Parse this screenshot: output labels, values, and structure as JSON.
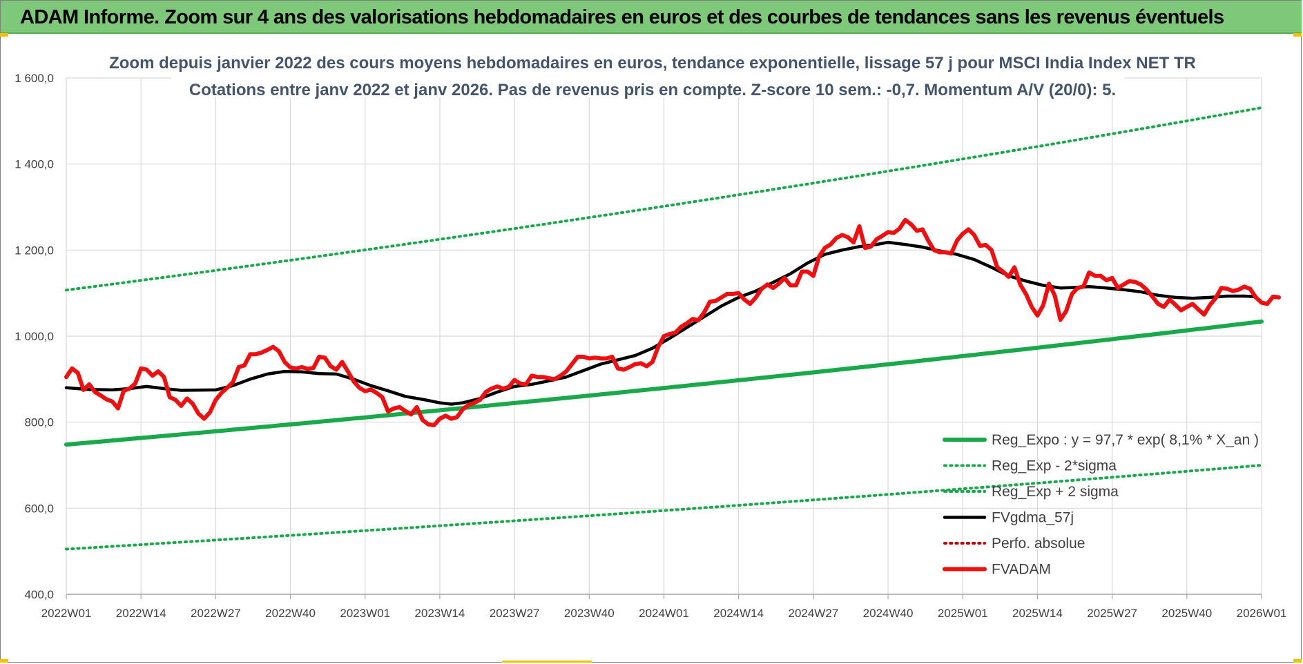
{
  "header": {
    "title": "ADAM Informe. Zoom sur 4 ans des valorisations hebdomadaires en euros et des courbes de tendances sans les revenus éventuels"
  },
  "colors": {
    "banner": "#7ec87a",
    "trend": "#19a84a",
    "trend_band": "#19a84a",
    "smooth": "#000000",
    "price": "#ee1010",
    "perf": "#c00000",
    "title_text": "#44546a"
  },
  "chart_data": {
    "type": "line",
    "title": [
      "Zoom depuis janvier 2022 des cours moyens hebdomadaires en euros, tendance exponentielle, lissage 57 j pour MSCI India Index NET TR",
      "Cotations entre janv 2022 et janv 2026. Pas de revenus pris en compte. Z-score 10 sem.: -0,7. Momentum A/V (20/0): 5."
    ],
    "ylim": [
      400,
      1600
    ],
    "yticks": [
      "400,0",
      "600,0",
      "800,0",
      "1 000,0",
      "1 200,0",
      "1 400,0",
      "1 600,0"
    ],
    "ytick_values": [
      400,
      600,
      800,
      1000,
      1200,
      1400,
      1600
    ],
    "xticks": [
      "2022W01",
      "2022W14",
      "2022W27",
      "2022W40",
      "2023W01",
      "2023W14",
      "2023W27",
      "2023W40",
      "2024W01",
      "2024W14",
      "2024W27",
      "2024W40",
      "2025W01",
      "2025W14",
      "2025W27",
      "2025W40",
      "2026W01"
    ],
    "xtick_weeks": [
      0,
      13,
      26,
      39,
      52,
      65,
      78,
      91,
      104,
      117,
      130,
      143,
      156,
      169,
      182,
      195,
      208
    ],
    "grid": true,
    "legend_position": "bottom-right",
    "series": [
      {
        "name": "Reg_Expo : y = 97,7 * exp( 8,1% *  X_an )",
        "style": "solid-thick",
        "color": "#19a84a",
        "exp_fit": {
          "start_value": 748,
          "end_value": 1034,
          "weeks": 208
        }
      },
      {
        "name": "Reg_Exp - 2*sigma",
        "style": "dotted",
        "color": "#19a84a",
        "exp_fit": {
          "start_value": 505,
          "end_value": 700,
          "weeks": 208
        }
      },
      {
        "name": "Reg_Exp + 2 sigma",
        "style": "dotted",
        "color": "#19a84a",
        "exp_fit": {
          "start_value": 1107,
          "end_value": 1531,
          "weeks": 208
        }
      },
      {
        "name": "FVgdma_57j",
        "style": "solid",
        "color": "#000000",
        "points": [
          [
            0,
            880
          ],
          [
            4,
            876
          ],
          [
            8,
            875
          ],
          [
            11,
            878
          ],
          [
            14,
            883
          ],
          [
            17,
            878
          ],
          [
            20,
            874
          ],
          [
            26,
            875
          ],
          [
            29,
            885
          ],
          [
            32,
            900
          ],
          [
            35,
            912
          ],
          [
            38,
            918
          ],
          [
            41,
            917
          ],
          [
            44,
            913
          ],
          [
            47,
            912
          ],
          [
            50,
            900
          ],
          [
            53,
            885
          ],
          [
            56,
            873
          ],
          [
            59,
            860
          ],
          [
            62,
            853
          ],
          [
            65,
            845
          ],
          [
            67,
            842
          ],
          [
            69,
            845
          ],
          [
            72,
            855
          ],
          [
            75,
            870
          ],
          [
            78,
            883
          ],
          [
            81,
            888
          ],
          [
            84,
            896
          ],
          [
            87,
            905
          ],
          [
            90,
            920
          ],
          [
            93,
            935
          ],
          [
            96,
            945
          ],
          [
            99,
            955
          ],
          [
            102,
            972
          ],
          [
            105,
            995
          ],
          [
            108,
            1020
          ],
          [
            111,
            1045
          ],
          [
            114,
            1070
          ],
          [
            117,
            1090
          ],
          [
            120,
            1105
          ],
          [
            123,
            1125
          ],
          [
            126,
            1145
          ],
          [
            129,
            1170
          ],
          [
            132,
            1190
          ],
          [
            135,
            1200
          ],
          [
            138,
            1208
          ],
          [
            141,
            1213
          ],
          [
            143,
            1218
          ],
          [
            146,
            1213
          ],
          [
            149,
            1207
          ],
          [
            152,
            1198
          ],
          [
            155,
            1190
          ],
          [
            158,
            1178
          ],
          [
            161,
            1160
          ],
          [
            164,
            1140
          ],
          [
            167,
            1128
          ],
          [
            170,
            1118
          ],
          [
            173,
            1112
          ],
          [
            175,
            1113
          ],
          [
            178,
            1115
          ],
          [
            181,
            1112
          ],
          [
            184,
            1108
          ],
          [
            187,
            1103
          ],
          [
            190,
            1095
          ],
          [
            193,
            1090
          ],
          [
            196,
            1088
          ],
          [
            199,
            1090
          ],
          [
            202,
            1093
          ],
          [
            205,
            1093
          ],
          [
            207,
            1092
          ]
        ]
      },
      {
        "name": "Perfo. absolue",
        "style": "dotted",
        "color": "#c00000",
        "points": []
      },
      {
        "name": "FVADAM",
        "style": "solid-thick",
        "color": "#ee1010",
        "points": [
          [
            0,
            905
          ],
          [
            1,
            925
          ],
          [
            2,
            915
          ],
          [
            3,
            875
          ],
          [
            4,
            888
          ],
          [
            5,
            870
          ],
          [
            6,
            862
          ],
          [
            7,
            853
          ],
          [
            8,
            848
          ],
          [
            9,
            832
          ],
          [
            10,
            873
          ],
          [
            11,
            878
          ],
          [
            12,
            890
          ],
          [
            13,
            925
          ],
          [
            14,
            922
          ],
          [
            15,
            908
          ],
          [
            16,
            918
          ],
          [
            17,
            905
          ],
          [
            18,
            858
          ],
          [
            19,
            852
          ],
          [
            20,
            838
          ],
          [
            21,
            855
          ],
          [
            22,
            843
          ],
          [
            23,
            820
          ],
          [
            24,
            808
          ],
          [
            25,
            823
          ],
          [
            26,
            852
          ],
          [
            27,
            868
          ],
          [
            28,
            880
          ],
          [
            29,
            893
          ],
          [
            30,
            928
          ],
          [
            31,
            932
          ],
          [
            32,
            958
          ],
          [
            33,
            958
          ],
          [
            34,
            962
          ],
          [
            35,
            968
          ],
          [
            36,
            975
          ],
          [
            37,
            965
          ],
          [
            38,
            940
          ],
          [
            39,
            927
          ],
          [
            40,
            925
          ],
          [
            41,
            928
          ],
          [
            42,
            924
          ],
          [
            43,
            926
          ],
          [
            44,
            952
          ],
          [
            45,
            950
          ],
          [
            46,
            930
          ],
          [
            47,
            922
          ],
          [
            48,
            940
          ],
          [
            49,
            918
          ],
          [
            50,
            895
          ],
          [
            51,
            880
          ],
          [
            52,
            872
          ],
          [
            53,
            876
          ],
          [
            54,
            868
          ],
          [
            55,
            858
          ],
          [
            56,
            825
          ],
          [
            57,
            832
          ],
          [
            58,
            835
          ],
          [
            59,
            826
          ],
          [
            60,
            818
          ],
          [
            61,
            835
          ],
          [
            62,
            805
          ],
          [
            63,
            795
          ],
          [
            64,
            793
          ],
          [
            65,
            808
          ],
          [
            66,
            815
          ],
          [
            67,
            808
          ],
          [
            68,
            812
          ],
          [
            69,
            830
          ],
          [
            70,
            840
          ],
          [
            71,
            845
          ],
          [
            72,
            852
          ],
          [
            73,
            870
          ],
          [
            74,
            878
          ],
          [
            75,
            883
          ],
          [
            76,
            878
          ],
          [
            77,
            882
          ],
          [
            78,
            898
          ],
          [
            79,
            890
          ],
          [
            80,
            888
          ],
          [
            81,
            908
          ],
          [
            82,
            905
          ],
          [
            83,
            905
          ],
          [
            84,
            902
          ],
          [
            85,
            900
          ],
          [
            86,
            908
          ],
          [
            87,
            918
          ],
          [
            88,
            935
          ],
          [
            89,
            952
          ],
          [
            90,
            952
          ],
          [
            91,
            948
          ],
          [
            92,
            950
          ],
          [
            93,
            948
          ],
          [
            94,
            948
          ],
          [
            95,
            952
          ],
          [
            96,
            925
          ],
          [
            97,
            922
          ],
          [
            98,
            928
          ],
          [
            99,
            935
          ],
          [
            100,
            937
          ],
          [
            101,
            930
          ],
          [
            102,
            940
          ],
          [
            103,
            975
          ],
          [
            104,
            1000
          ],
          [
            105,
            1005
          ],
          [
            106,
            1008
          ],
          [
            107,
            1022
          ],
          [
            108,
            1030
          ],
          [
            109,
            1040
          ],
          [
            110,
            1037
          ],
          [
            111,
            1055
          ],
          [
            112,
            1080
          ],
          [
            113,
            1082
          ],
          [
            114,
            1090
          ],
          [
            115,
            1098
          ],
          [
            116,
            1098
          ],
          [
            117,
            1100
          ],
          [
            118,
            1085
          ],
          [
            119,
            1075
          ],
          [
            120,
            1090
          ],
          [
            121,
            1110
          ],
          [
            122,
            1120
          ],
          [
            123,
            1112
          ],
          [
            124,
            1122
          ],
          [
            125,
            1135
          ],
          [
            126,
            1118
          ],
          [
            127,
            1118
          ],
          [
            128,
            1150
          ],
          [
            129,
            1150
          ],
          [
            130,
            1140
          ],
          [
            131,
            1185
          ],
          [
            132,
            1205
          ],
          [
            133,
            1213
          ],
          [
            134,
            1228
          ],
          [
            135,
            1235
          ],
          [
            136,
            1230
          ],
          [
            137,
            1218
          ],
          [
            138,
            1255
          ],
          [
            139,
            1205
          ],
          [
            140,
            1208
          ],
          [
            141,
            1225
          ],
          [
            142,
            1233
          ],
          [
            143,
            1242
          ],
          [
            144,
            1240
          ],
          [
            145,
            1250
          ],
          [
            146,
            1270
          ],
          [
            147,
            1260
          ],
          [
            148,
            1245
          ],
          [
            149,
            1248
          ],
          [
            150,
            1222
          ],
          [
            151,
            1200
          ],
          [
            152,
            1195
          ],
          [
            153,
            1195
          ],
          [
            154,
            1192
          ],
          [
            155,
            1222
          ],
          [
            156,
            1238
          ],
          [
            157,
            1248
          ],
          [
            158,
            1235
          ],
          [
            159,
            1210
          ],
          [
            160,
            1212
          ],
          [
            161,
            1200
          ],
          [
            162,
            1160
          ],
          [
            163,
            1150
          ],
          [
            164,
            1138
          ],
          [
            165,
            1160
          ],
          [
            166,
            1120
          ],
          [
            167,
            1098
          ],
          [
            168,
            1068
          ],
          [
            169,
            1048
          ],
          [
            170,
            1072
          ],
          [
            171,
            1122
          ],
          [
            172,
            1095
          ],
          [
            173,
            1038
          ],
          [
            174,
            1058
          ],
          [
            175,
            1098
          ],
          [
            176,
            1112
          ],
          [
            177,
            1115
          ],
          [
            178,
            1148
          ],
          [
            179,
            1140
          ],
          [
            180,
            1140
          ],
          [
            181,
            1130
          ],
          [
            182,
            1135
          ],
          [
            183,
            1112
          ],
          [
            184,
            1120
          ],
          [
            185,
            1128
          ],
          [
            186,
            1126
          ],
          [
            187,
            1120
          ],
          [
            188,
            1108
          ],
          [
            189,
            1092
          ],
          [
            190,
            1075
          ],
          [
            191,
            1068
          ],
          [
            192,
            1085
          ],
          [
            193,
            1073
          ],
          [
            194,
            1060
          ],
          [
            195,
            1068
          ],
          [
            196,
            1075
          ],
          [
            197,
            1062
          ],
          [
            198,
            1050
          ],
          [
            199,
            1072
          ],
          [
            200,
            1088
          ],
          [
            201,
            1112
          ],
          [
            202,
            1110
          ],
          [
            203,
            1105
          ],
          [
            204,
            1108
          ],
          [
            205,
            1115
          ],
          [
            206,
            1110
          ],
          [
            207,
            1090
          ],
          [
            208,
            1078
          ],
          [
            209,
            1075
          ],
          [
            210,
            1092
          ],
          [
            211,
            1090
          ]
        ]
      }
    ]
  }
}
